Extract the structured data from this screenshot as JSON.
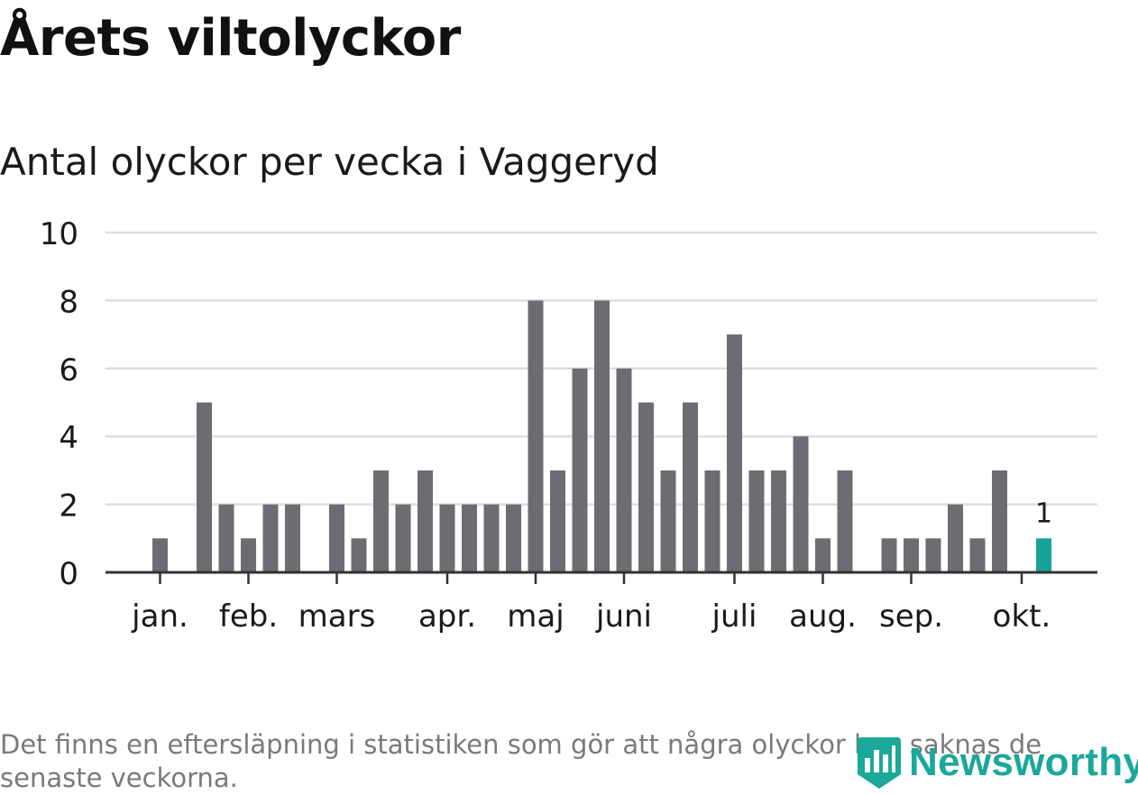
{
  "header": {
    "title": "Årets viltolyckor",
    "subtitle": "Antal olyckor per vecka i Vaggeryd"
  },
  "footnote": "Det finns en eftersläpning i statistiken som gör att några olyckor kan saknas de senaste veckorna.",
  "logo": {
    "text": "Newsworthy"
  },
  "colors": {
    "bar": "#6d6c72",
    "highlight": "#17a398",
    "grid": "#dedede",
    "axis": "#333333",
    "text": "#1a1a1a",
    "muted": "#7a7a7a",
    "brand": "#1aa89a"
  },
  "chart_data": {
    "type": "bar",
    "title": "Årets viltolyckor",
    "subtitle": "Antal olyckor per vecka i Vaggeryd",
    "ylim": [
      0,
      10
    ],
    "yticks": [
      "0",
      "2",
      "4",
      "6",
      "8",
      "10"
    ],
    "grid": true,
    "values": [
      1,
      0,
      5,
      2,
      1,
      2,
      2,
      0,
      2,
      1,
      3,
      2,
      3,
      2,
      2,
      2,
      2,
      8,
      3,
      6,
      8,
      6,
      5,
      3,
      5,
      3,
      7,
      3,
      3,
      4,
      1,
      3,
      0,
      1,
      1,
      1,
      2,
      1,
      3,
      0,
      1
    ],
    "highlight_index": 40,
    "highlight_label": "1",
    "month_labels": [
      {
        "label": "jan.",
        "bar": 0
      },
      {
        "label": "feb.",
        "bar": 4
      },
      {
        "label": "mars",
        "bar": 8
      },
      {
        "label": "apr.",
        "bar": 13
      },
      {
        "label": "maj",
        "bar": 17
      },
      {
        "label": "juni",
        "bar": 21
      },
      {
        "label": "juli",
        "bar": 26
      },
      {
        "label": "aug.",
        "bar": 30
      },
      {
        "label": "sep.",
        "bar": 34
      },
      {
        "label": "okt.",
        "bar": 39
      }
    ]
  }
}
